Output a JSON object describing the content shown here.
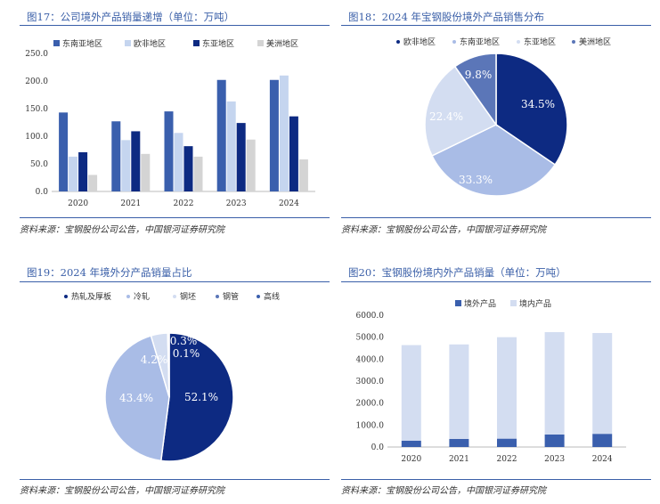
{
  "panels": {
    "p1": {
      "title": "图17：公司境外产品销量递增（单位：万吨）",
      "source": "资料来源：宝钢股份公司公告，中国银河证券研究院"
    },
    "p2": {
      "title": "图18：2024 年宝钢股份境外产品销售分布",
      "source": "资料来源：宝钢股份公司公告，中国银河证券研究院"
    },
    "p3": {
      "title": "图19：2024 年境外分产品销量占比",
      "source": "资料来源：宝钢股份公司公告，中国银河证券研究院"
    },
    "p4": {
      "title": "图20：宝钢股份境内外产品销量（单位：万吨）",
      "source": "资料来源：宝钢股份公司公告，中国银河证券研究院"
    }
  },
  "chart_data": [
    {
      "type": "bar",
      "title": "",
      "categories": [
        "2020",
        "2021",
        "2022",
        "2023",
        "2024"
      ],
      "series": [
        {
          "name": "东南亚地区",
          "color": "#3a5fad",
          "values": [
            143,
            127,
            145,
            202,
            202
          ]
        },
        {
          "name": "欧非地区",
          "color": "#c5d5ef",
          "values": [
            63,
            93,
            106,
            163,
            210
          ]
        },
        {
          "name": "东亚地区",
          "color": "#0d2a82",
          "values": [
            71,
            109,
            82,
            124,
            136
          ]
        },
        {
          "name": "美洲地区",
          "color": "#d4d4d4",
          "values": [
            30,
            68,
            63,
            94,
            58
          ]
        }
      ],
      "yticks": [
        "0.0",
        "50.0",
        "100.0",
        "150.0",
        "200.0",
        "250.0"
      ],
      "ylim": [
        0,
        250
      ],
      "legend": "top"
    },
    {
      "type": "pie",
      "title": "",
      "slices": [
        {
          "name": "欧非地区",
          "label": "34.5%",
          "value": 34.5,
          "color": "#0d2a82",
          "label_color": "#ffffff"
        },
        {
          "name": "东南亚地区",
          "label": "33.3%",
          "value": 33.3,
          "color": "#a9bce6",
          "label_color": "#ffffff"
        },
        {
          "name": "东亚地区",
          "label": "22.4%",
          "value": 22.4,
          "color": "#d3ddf1",
          "label_color": "#ffffff"
        },
        {
          "name": "美洲地区",
          "label": "9.8%",
          "value": 9.8,
          "color": "#5b76b8",
          "label_color": "#ffffff"
        }
      ],
      "legend": "top"
    },
    {
      "type": "pie",
      "title": "",
      "slices": [
        {
          "name": "热轧及厚板",
          "label": "52.1%",
          "value": 52.1,
          "color": "#0d2a82",
          "label_color": "#ffffff"
        },
        {
          "name": "冷轧",
          "label": "43.4%",
          "value": 43.4,
          "color": "#a9bce6",
          "label_color": "#ffffff"
        },
        {
          "name": "钢坯",
          "label": "4.2%",
          "value": 4.2,
          "color": "#d3ddf1",
          "label_color": "#ffffff"
        },
        {
          "name": "钢管",
          "label": "0.3%",
          "value": 0.3,
          "color": "#5b76b8",
          "label_color": "#ffffff"
        },
        {
          "name": "高线",
          "label": "0.1%",
          "value": 0.1,
          "color": "#3a5fad",
          "label_color": "#ffffff"
        }
      ],
      "legend": "top"
    },
    {
      "type": "bar",
      "stacked": true,
      "title": "",
      "categories": [
        "2020",
        "2021",
        "2022",
        "2023",
        "2024"
      ],
      "series": [
        {
          "name": "境外产品",
          "color": "#3a5fad",
          "values": [
            290,
            370,
            380,
            570,
            600
          ]
        },
        {
          "name": "境内产品",
          "color": "#d3ddf1",
          "values": [
            4350,
            4300,
            4620,
            4660,
            4590
          ]
        }
      ],
      "yticks": [
        "0.0",
        "1000.0",
        "2000.0",
        "3000.0",
        "4000.0",
        "5000.0",
        "6000.0"
      ],
      "ylim": [
        0,
        6000
      ],
      "legend": "top"
    }
  ]
}
